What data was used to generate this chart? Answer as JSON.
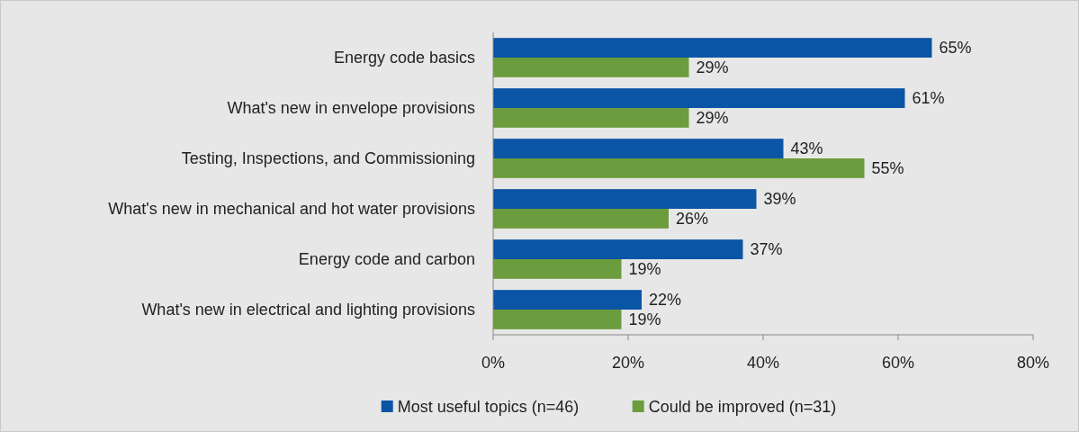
{
  "chart_data": {
    "type": "bar",
    "orientation": "horizontal",
    "categories": [
      "Energy code basics",
      "What's new in envelope provisions",
      "Testing, Inspections, and Commissioning",
      "What's new in mechanical and hot water provisions",
      "Energy code and carbon",
      "What's new in electrical and lighting provisions"
    ],
    "series": [
      {
        "name": "Most useful topics (n=46)",
        "color": "#0b55a5",
        "values": [
          65,
          61,
          43,
          39,
          37,
          22
        ],
        "value_labels": [
          "65%",
          "61%",
          "43%",
          "39%",
          "37%",
          "22%"
        ]
      },
      {
        "name": "Could be improved (n=31)",
        "color": "#6b9c3d",
        "values": [
          29,
          29,
          55,
          26,
          19,
          19
        ],
        "value_labels": [
          "29%",
          "29%",
          "55%",
          "26%",
          "19%",
          "19%"
        ]
      }
    ],
    "xlim": [
      0,
      80
    ],
    "xticks": [
      {
        "value": 0,
        "label": "0%"
      },
      {
        "value": 20,
        "label": "20%"
      },
      {
        "value": 40,
        "label": "40%"
      },
      {
        "value": 60,
        "label": "60%"
      },
      {
        "value": 80,
        "label": "80%"
      }
    ],
    "grid": false,
    "legend": "bottom"
  }
}
